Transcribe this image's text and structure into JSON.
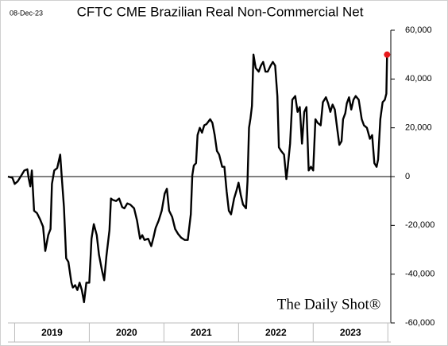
{
  "chart_data": {
    "type": "line",
    "title": "CFTC CME Brazilian Real Non-Commercial Net",
    "date_label": "08-Dec-23",
    "watermark": "The Daily Shot®",
    "categories": [
      "2019",
      "2020",
      "2021",
      "2022",
      "2023"
    ],
    "xlim": [
      2018.91,
      2024.04
    ],
    "ylim": [
      -60000,
      60000
    ],
    "yticks": [
      {
        "value": -60000,
        "label": "-60,000"
      },
      {
        "value": -40000,
        "label": "-40,000"
      },
      {
        "value": -20000,
        "label": "-20,000"
      },
      0,
      {
        "value": 20000,
        "label": "20,000"
      },
      {
        "value": 40000,
        "label": "40,000"
      },
      {
        "value": 60000,
        "label": "60,000"
      }
    ],
    "zero_line": true,
    "last_point_color": "#e8191c",
    "series": [
      {
        "color": "#000000",
        "x": [
          2018.91,
          2018.97,
          2019.0,
          2019.04,
          2019.09,
          2019.13,
          2019.17,
          2019.19,
          2019.21,
          2019.23,
          2019.26,
          2019.3,
          2019.34,
          2019.38,
          2019.41,
          2019.45,
          2019.48,
          2019.5,
          2019.53,
          2019.57,
          2019.61,
          2019.63,
          2019.66,
          2019.69,
          2019.72,
          2019.76,
          2019.78,
          2019.81,
          2019.84,
          2019.87,
          2019.9,
          2019.93,
          2019.96,
          2020.0,
          2020.03,
          2020.06,
          2020.1,
          2020.13,
          2020.17,
          2020.2,
          2020.23,
          2020.27,
          2020.29,
          2020.31,
          2020.36,
          2020.4,
          2020.44,
          2020.47,
          2020.51,
          2020.55,
          2020.6,
          2020.64,
          2020.68,
          2020.71,
          2020.74,
          2020.79,
          2020.83,
          2020.86,
          2020.89,
          2020.93,
          2020.97,
          2021.01,
          2021.04,
          2021.07,
          2021.11,
          2021.15,
          2021.19,
          2021.23,
          2021.28,
          2021.32,
          2021.36,
          2021.38,
          2021.4,
          2021.43,
          2021.45,
          2021.48,
          2021.51,
          2021.54,
          2021.57,
          2021.62,
          2021.65,
          2021.68,
          2021.71,
          2021.74,
          2021.78,
          2021.81,
          2021.84,
          2021.87,
          2021.9,
          2021.94,
          2021.97,
          2022.0,
          2022.03,
          2022.06,
          2022.1,
          2022.12,
          2022.14,
          2022.16,
          2022.18,
          2022.2,
          2022.23,
          2022.27,
          2022.3,
          2022.33,
          2022.36,
          2022.39,
          2022.43,
          2022.46,
          2022.49,
          2022.52,
          2022.54,
          2022.57,
          2022.61,
          2022.64,
          2022.66,
          2022.69,
          2022.72,
          2022.76,
          2022.79,
          2022.82,
          2022.85,
          2022.88,
          2022.91,
          2022.94,
          2022.97,
          2023.0,
          2023.03,
          2023.06,
          2023.1,
          2023.13,
          2023.17,
          2023.2,
          2023.23,
          2023.26,
          2023.29,
          2023.32,
          2023.35,
          2023.38,
          2023.4,
          2023.43,
          2023.45,
          2023.48,
          2023.51,
          2023.54,
          2023.57,
          2023.61,
          2023.65,
          2023.68,
          2023.72,
          2023.76,
          2023.79,
          2023.82,
          2023.85,
          2023.87,
          2023.9,
          2023.93,
          2023.96,
          2023.98,
          2023.99
        ],
        "values": [
          0,
          -500,
          -3000,
          -2000,
          500,
          2500,
          3000,
          -1000,
          -4000,
          2500,
          -14000,
          -15000,
          -17500,
          -20500,
          -30500,
          -24000,
          -21500,
          -3000,
          2500,
          3500,
          9000,
          500,
          -12500,
          -33500,
          -35000,
          -43500,
          -45500,
          -44500,
          -46500,
          -43500,
          -46500,
          -51500,
          -43500,
          -43500,
          -25500,
          -19500,
          -24000,
          -32000,
          -38500,
          -42500,
          -32500,
          -22000,
          -9000,
          -9500,
          -10000,
          -9000,
          -12500,
          -13000,
          -11000,
          -11500,
          -13000,
          -18000,
          -25500,
          -24000,
          -26000,
          -25500,
          -28500,
          -25000,
          -21000,
          -18000,
          -14000,
          -7000,
          -5000,
          -14000,
          -16500,
          -21500,
          -23500,
          -25000,
          -26000,
          -26000,
          -15500,
          500,
          4500,
          5500,
          17000,
          20000,
          18000,
          21000,
          21500,
          23500,
          22000,
          17000,
          10500,
          9000,
          4000,
          4000,
          -6000,
          -14000,
          -15500,
          -9000,
          -6000,
          -2500,
          -7500,
          -11500,
          -13000,
          -2000,
          20000,
          24000,
          29000,
          50000,
          44500,
          43000,
          45500,
          47000,
          43000,
          43000,
          45500,
          47000,
          45500,
          33000,
          12000,
          10500,
          9000,
          -1000,
          4000,
          13500,
          31500,
          33000,
          26500,
          28500,
          13500,
          26500,
          28500,
          2500,
          4000,
          2500,
          23500,
          22000,
          21000,
          30500,
          32500,
          30000,
          26500,
          29500,
          27500,
          20000,
          13000,
          14500,
          23500,
          26000,
          30000,
          32500,
          27500,
          31500,
          33000,
          31500,
          23500,
          21000,
          20000,
          15500,
          17000,
          5500,
          4000,
          7000,
          23500,
          30500,
          31500,
          34000,
          50000
        ]
      }
    ]
  }
}
